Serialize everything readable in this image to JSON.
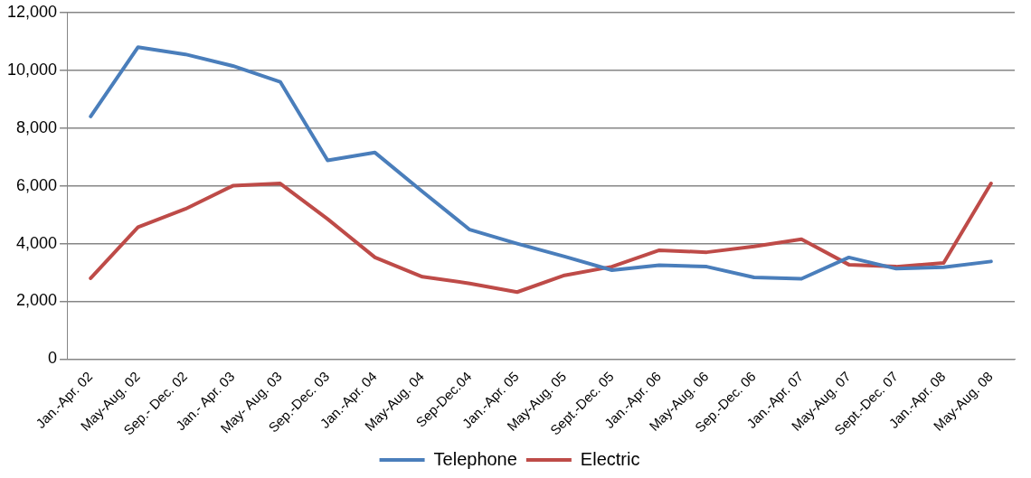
{
  "chart_data": {
    "type": "line",
    "categories": [
      "Jan.-Apr. 02",
      "May-Aug. 02",
      "Sep.- Dec. 02",
      "Jan.- Apr. 03",
      "May- Aug. 03",
      "Sep.-Dec. 03",
      "Jan.-Apr. 04",
      "May-Aug. 04",
      "Sep-Dec.04",
      "Jan.-Apr. 05",
      "May-Aug. 05",
      "Sept.-Dec. 05",
      "Jan.-Apr. 06",
      "May-Aug. 06",
      "Sep.-Dec. 06",
      "Jan.-Apr. 07",
      "May-Aug. 07",
      "Sept.-Dec. 07",
      "Jan.-Apr. 08",
      "May-Aug. 08"
    ],
    "series": [
      {
        "name": "Telephone",
        "color": "#4a7ebb",
        "values": [
          8400,
          10800,
          10550,
          10150,
          9600,
          6880,
          7150,
          5800,
          4480,
          4000,
          3550,
          3080,
          3250,
          3200,
          2830,
          2780,
          3520,
          3130,
          3180,
          3380
        ]
      },
      {
        "name": "Electric",
        "color": "#be4b48",
        "values": [
          2800,
          4570,
          5200,
          6000,
          6080,
          4850,
          3520,
          2850,
          2620,
          2320,
          2900,
          3200,
          3770,
          3700,
          3900,
          4150,
          3270,
          3200,
          3330,
          6080
        ]
      }
    ],
    "ylim": [
      0,
      12000
    ],
    "yticks": [
      {
        "value": 0,
        "label": "0"
      },
      {
        "value": 2000,
        "label": "2,000"
      },
      {
        "value": 4000,
        "label": "4,000"
      },
      {
        "value": 6000,
        "label": "6,000"
      },
      {
        "value": 8000,
        "label": "8,000"
      },
      {
        "value": 10000,
        "label": "10,000"
      },
      {
        "value": 12000,
        "label": "12,000"
      }
    ],
    "grid": "y",
    "legend": "bottom",
    "marker": "none",
    "line_style": "solid"
  }
}
